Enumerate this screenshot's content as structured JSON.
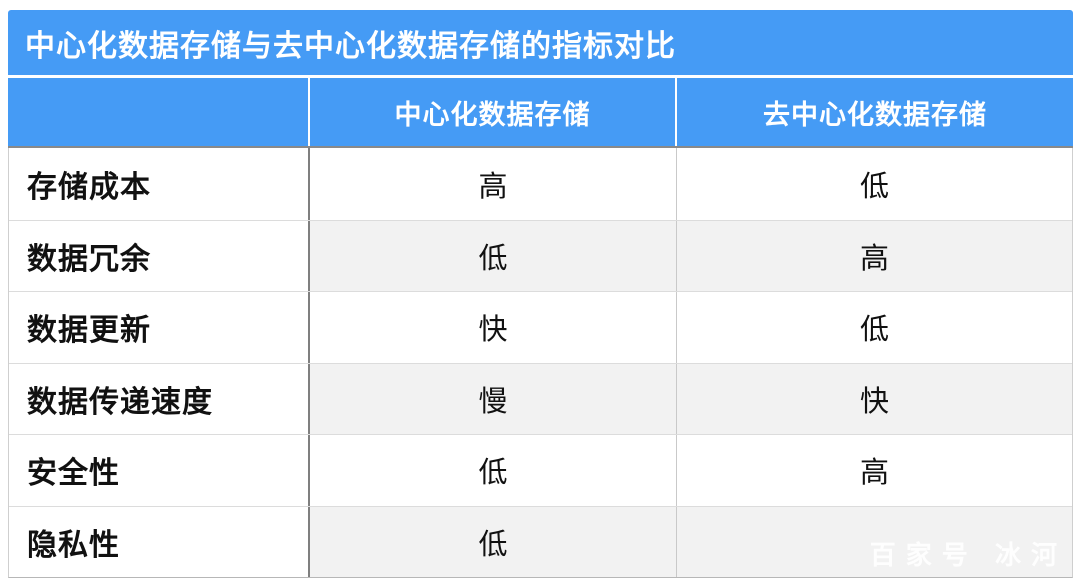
{
  "chart_data": {
    "type": "table",
    "title": "中心化数据存储与去中心化数据存储的指标对比",
    "columns": [
      "",
      "中心化数据存储",
      "去中心化数据存储"
    ],
    "rows": [
      {
        "label": "存储成本",
        "values": [
          "高",
          "低"
        ]
      },
      {
        "label": "数据冗余",
        "values": [
          "低",
          "高"
        ]
      },
      {
        "label": "数据更新",
        "values": [
          "快",
          "低"
        ]
      },
      {
        "label": "数据传递速度",
        "values": [
          "慢",
          "快"
        ]
      },
      {
        "label": "安全性",
        "values": [
          "低",
          "高"
        ]
      },
      {
        "label": "隐私性",
        "values": [
          "低",
          ""
        ]
      }
    ],
    "layout": {
      "striped_rows": "even rows, value columns only",
      "legend_position": "none",
      "grid": "on"
    }
  },
  "watermark": {
    "text": "百家号 冰河"
  },
  "colors": {
    "header_blue": "#459bf5",
    "stripe_gray": "#f2f2f2",
    "label_divider_gray": "#7f7f7f",
    "row_line_gray": "#dcdcdc",
    "text_black": "#111111",
    "header_text_white": "#ffffff"
  }
}
